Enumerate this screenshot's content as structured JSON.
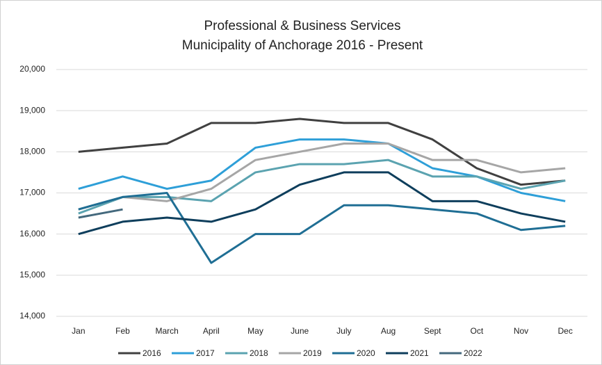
{
  "chart_data": {
    "type": "line",
    "title": "Professional & Business Services",
    "subtitle": "Municipality of Anchorage 2016 - Present",
    "categories": [
      "Jan",
      "Feb",
      "March",
      "April",
      "May",
      "June",
      "July",
      "Aug",
      "Sept",
      "Oct",
      "Nov",
      "Dec"
    ],
    "series": [
      {
        "name": "2016",
        "color": "#404040",
        "values": [
          18000,
          18100,
          18200,
          18700,
          18700,
          18800,
          18700,
          18700,
          18300,
          17600,
          17200,
          17300
        ]
      },
      {
        "name": "2017",
        "color": "#2e9fd8",
        "values": [
          17100,
          17400,
          17100,
          17300,
          18100,
          18300,
          18300,
          18200,
          17600,
          17400,
          17000,
          16800
        ]
      },
      {
        "name": "2018",
        "color": "#5ba3b0",
        "values": [
          16500,
          16900,
          16900,
          16800,
          17500,
          17700,
          17700,
          17800,
          17400,
          17400,
          17100,
          17300
        ]
      },
      {
        "name": "2019",
        "color": "#a6a6a6",
        "values": [
          16600,
          16900,
          16800,
          17100,
          17800,
          18000,
          18200,
          18200,
          17800,
          17800,
          17500,
          17600
        ]
      },
      {
        "name": "2020",
        "color": "#1f6e94",
        "values": [
          16600,
          16900,
          17000,
          15300,
          16000,
          16000,
          16700,
          16700,
          16600,
          16500,
          16100,
          16200
        ]
      },
      {
        "name": "2021",
        "color": "#0e3e5c",
        "values": [
          16000,
          16300,
          16400,
          16300,
          16600,
          17200,
          17500,
          17500,
          16800,
          16800,
          16500,
          16300
        ]
      },
      {
        "name": "2022",
        "color": "#44697d",
        "values": [
          16400,
          16600,
          null,
          null,
          null,
          null,
          null,
          null,
          null,
          null,
          null,
          null
        ]
      }
    ],
    "ylim": [
      14000,
      20000
    ],
    "yticks": [
      {
        "value": 14000,
        "label": "14,000"
      },
      {
        "value": 15000,
        "label": "15,000"
      },
      {
        "value": 16000,
        "label": "16,000"
      },
      {
        "value": 17000,
        "label": "17,000"
      },
      {
        "value": 18000,
        "label": "18,000"
      },
      {
        "value": 19000,
        "label": "19,000"
      },
      {
        "value": 20000,
        "label": "20,000"
      }
    ],
    "grid": true,
    "legend": "bottom"
  }
}
